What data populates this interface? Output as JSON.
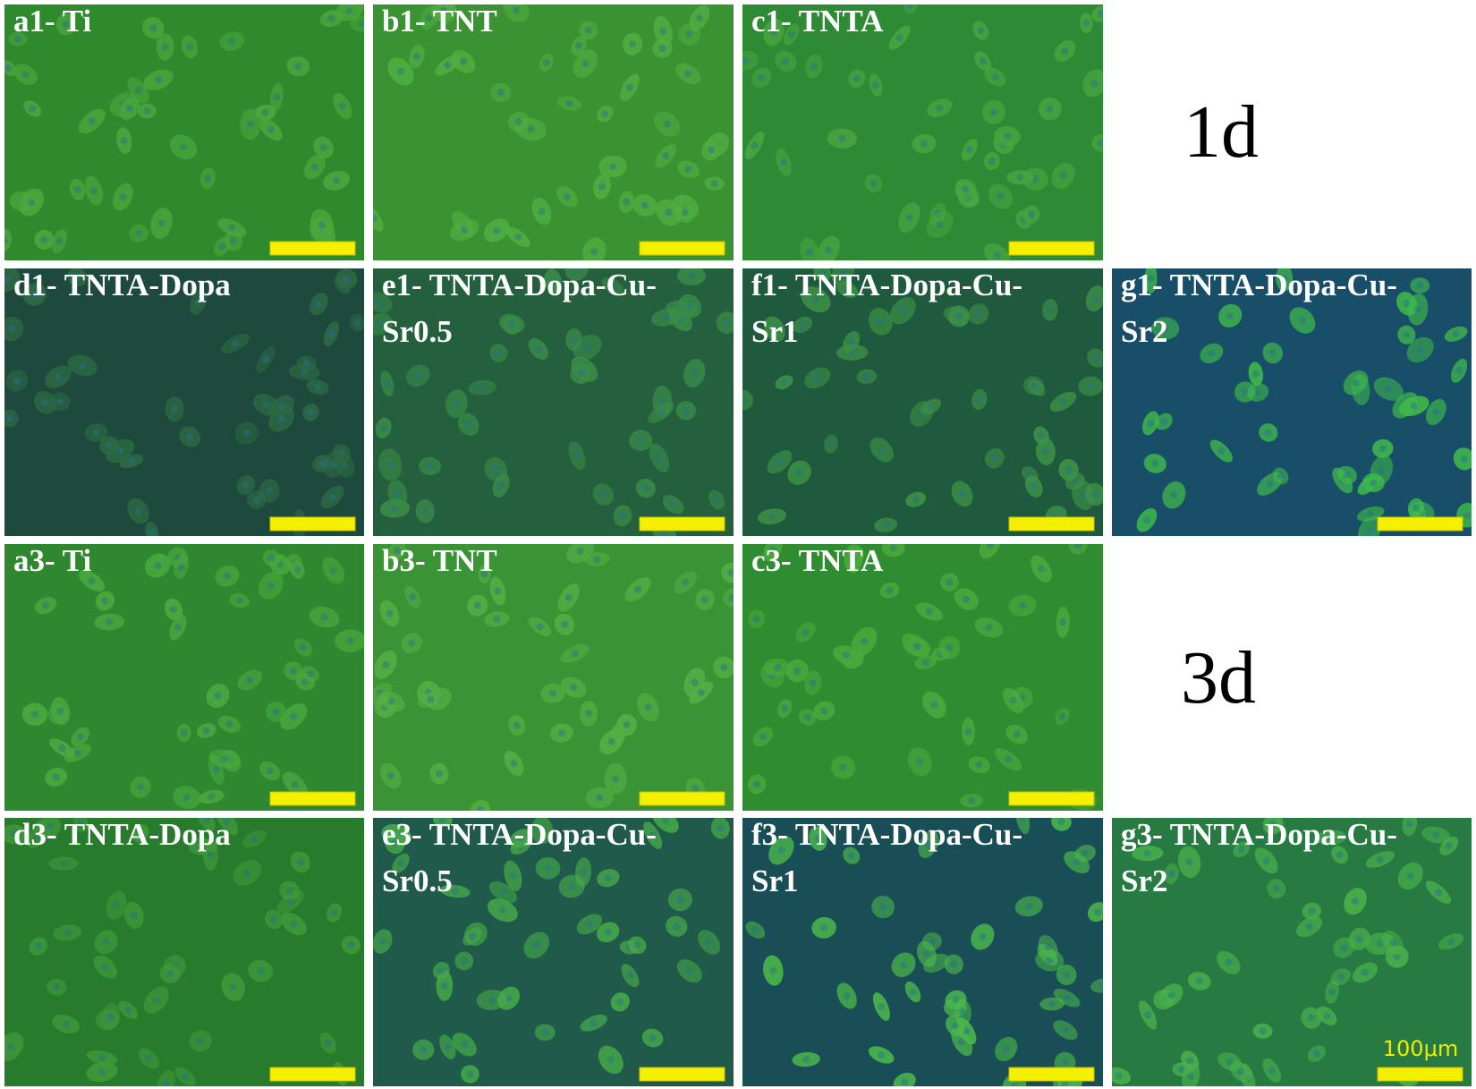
{
  "panels": [
    {
      "lines": [
        "a1- Ti"
      ]
    },
    {
      "lines": [
        "b1- TNT"
      ]
    },
    {
      "lines": [
        "c1- TNTA"
      ]
    },
    {
      "lines": [
        "d1- TNTA-Dopa"
      ]
    },
    {
      "lines": [
        "e1- TNTA-Dopa-Cu-",
        "Sr0.5"
      ]
    },
    {
      "lines": [
        "f1- TNTA-Dopa-Cu-",
        "Sr1"
      ]
    },
    {
      "lines": [
        "g1- TNTA-Dopa-Cu-",
        "Sr2"
      ]
    },
    {
      "lines": [
        "a3- Ti"
      ]
    },
    {
      "lines": [
        "b3- TNT"
      ]
    },
    {
      "lines": [
        "c3- TNTA"
      ]
    },
    {
      "lines": [
        "d3- TNTA-Dopa"
      ]
    },
    {
      "lines": [
        "e3- TNTA-Dopa-Cu-",
        "Sr0.5"
      ]
    },
    {
      "lines": [
        "f3- TNTA-Dopa-Cu-",
        "Sr1"
      ]
    },
    {
      "lines": [
        "g3- TNTA-Dopa-Cu-",
        "Sr2"
      ]
    }
  ],
  "day_labels": [
    "1d",
    "3d"
  ],
  "scale_bar_label": "100μm"
}
